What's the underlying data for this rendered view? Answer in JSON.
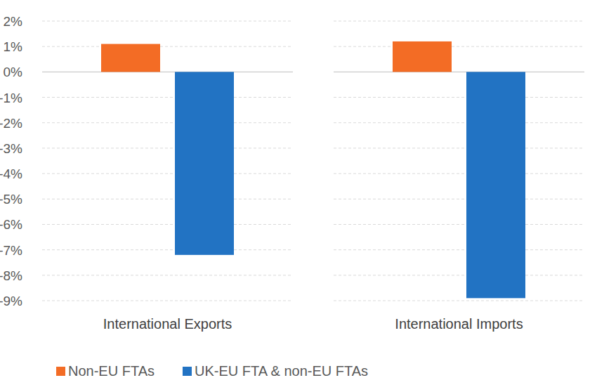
{
  "chart_data": {
    "type": "bar",
    "categories": [
      "International Exports",
      "International Imports"
    ],
    "series": [
      {
        "name": "Non-EU FTAs",
        "color": "#f36c25",
        "values": [
          1.1,
          1.2
        ]
      },
      {
        "name": "UK-EU FTA & non-EU FTAs",
        "color": "#2273c3",
        "values": [
          -7.2,
          -8.9
        ]
      }
    ],
    "ylim": [
      -9,
      2
    ],
    "yticks": [
      {
        "value": -9,
        "label": "-9%"
      },
      {
        "value": -8,
        "label": "-8%"
      },
      {
        "value": -7,
        "label": "-7%"
      },
      {
        "value": -6,
        "label": "-6%"
      },
      {
        "value": -5,
        "label": "-5%"
      },
      {
        "value": -4,
        "label": "-4%"
      },
      {
        "value": -3,
        "label": "-3%"
      },
      {
        "value": -2,
        "label": "-2%"
      },
      {
        "value": -1,
        "label": "-1%"
      },
      {
        "value": 0,
        "label": "0%"
      },
      {
        "value": 1,
        "label": "1%"
      },
      {
        "value": 2,
        "label": "2%"
      }
    ],
    "grid": true,
    "legend": "bottom"
  }
}
